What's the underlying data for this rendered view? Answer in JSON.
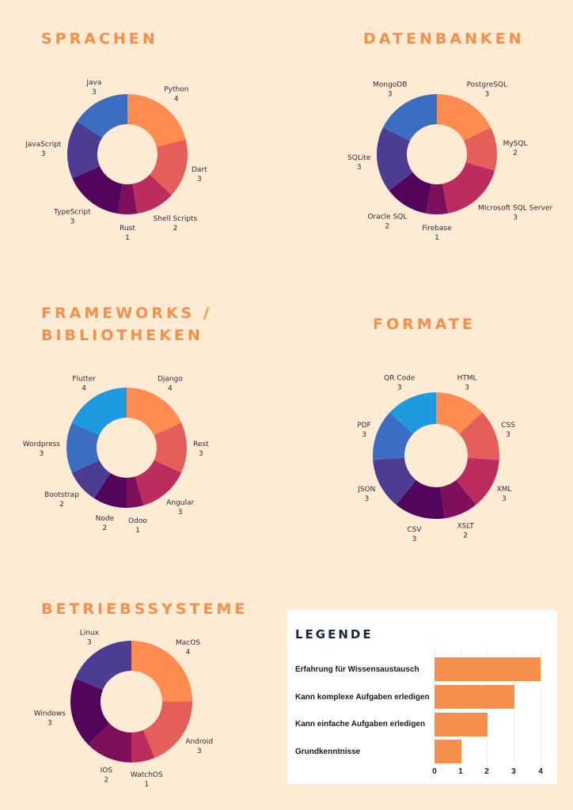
{
  "colors": [
    "#fe8c50",
    "#e55e5a",
    "#bd2c5e",
    "#7e0f5d",
    "#52055b",
    "#4c3c92",
    "#3b6dc3",
    "#1d9ae0"
  ],
  "legend": {
    "title": "LEGENDE",
    "rows": [
      {
        "label": "Erfahrung für Wissensaustausch",
        "value": 4
      },
      {
        "label": "Kann komplexe Aufgaben erledigen",
        "value": 3
      },
      {
        "label": "Kann einfache Aufgaben   erledigen",
        "value": 2
      },
      {
        "label": "Grundkenntnisse",
        "value": 1
      }
    ],
    "ticks": [
      "0",
      "1",
      "2",
      "3",
      "4"
    ],
    "max": 4
  },
  "chart_data": [
    {
      "type": "pie",
      "title": "SPRACHEN",
      "categories": [
        "Python",
        "Dart",
        "Shell Scripts",
        "Rust",
        "TypeScript",
        "JavaScript",
        "Java"
      ],
      "values": [
        4,
        3,
        2,
        1,
        3,
        3,
        3
      ],
      "colors": [
        "#fe8c50",
        "#e55e5a",
        "#bd2c5e",
        "#7e0f5d",
        "#52055b",
        "#4c3c92",
        "#3b6dc3"
      ]
    },
    {
      "type": "pie",
      "title": "DATENBANKEN",
      "categories": [
        "PostgreSQL",
        "MySQL",
        "MIcrosoft SQL Server",
        "Firebase",
        "Oracle SQL",
        "SQLite",
        "MongoDB"
      ],
      "values": [
        3,
        2,
        3,
        1,
        2,
        3,
        3
      ],
      "colors": [
        "#fe8c50",
        "#e55e5a",
        "#bd2c5e",
        "#7e0f5d",
        "#52055b",
        "#4c3c92",
        "#3b6dc3"
      ]
    },
    {
      "type": "pie",
      "title": "FRAMEWORKS / BIBLIOTHEKEN",
      "categories": [
        "Django",
        "Rest",
        "Angular",
        "Odoo",
        "Node",
        "Bootstrap",
        "Wordpress",
        "Flutter"
      ],
      "values": [
        4,
        3,
        3,
        1,
        2,
        2,
        3,
        4
      ],
      "colors": [
        "#fe8c50",
        "#e55e5a",
        "#bd2c5e",
        "#7e0f5d",
        "#52055b",
        "#4c3c92",
        "#3b6dc3",
        "#1d9ae0"
      ]
    },
    {
      "type": "pie",
      "title": "FORMATE",
      "categories": [
        "HTML",
        "CSS",
        "XML",
        "XSLT",
        "CSV",
        "JSON",
        "PDF",
        "QR Code"
      ],
      "values": [
        3,
        3,
        3,
        2,
        3,
        3,
        3,
        3
      ],
      "colors": [
        "#fe8c50",
        "#e55e5a",
        "#bd2c5e",
        "#7e0f5d",
        "#52055b",
        "#4c3c92",
        "#3b6dc3",
        "#1d9ae0"
      ]
    },
    {
      "type": "pie",
      "title": "BETRIEBSSYSTEME",
      "categories": [
        "MacOS",
        "Android",
        "WatchOS",
        "IOS",
        "Windows",
        "Linux"
      ],
      "values": [
        4,
        3,
        1,
        2,
        3,
        3
      ],
      "colors": [
        "#fe8c50",
        "#e55e5a",
        "#bd2c5e",
        "#7e0f5d",
        "#52055b",
        "#4c3c92"
      ]
    }
  ]
}
